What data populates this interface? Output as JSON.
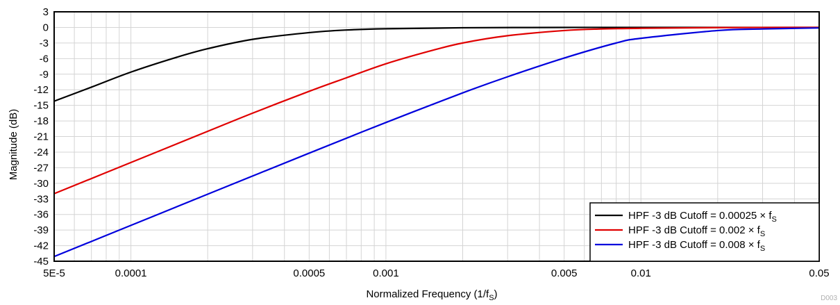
{
  "chart_data": {
    "type": "line",
    "title": "",
    "xlabel": "Normalized Frequency (1/f",
    "xlabel_sub": "S",
    "xlabel_suffix": ")",
    "ylabel": "Magnitude (dB)",
    "x_scale": "log",
    "xlim": [
      5e-05,
      0.05
    ],
    "ylim": [
      -45,
      3
    ],
    "x_ticks": [
      {
        "value": 5e-05,
        "label": "5E-5"
      },
      {
        "value": 0.0001,
        "label": "0.0001"
      },
      {
        "value": 0.0005,
        "label": "0.0005"
      },
      {
        "value": 0.001,
        "label": "0.001"
      },
      {
        "value": 0.005,
        "label": "0.005"
      },
      {
        "value": 0.01,
        "label": "0.01"
      },
      {
        "value": 0.05,
        "label": "0.05"
      }
    ],
    "y_ticks": [
      3,
      0,
      -3,
      -6,
      -9,
      -12,
      -15,
      -18,
      -21,
      -24,
      -27,
      -30,
      -33,
      -36,
      -39,
      -42,
      -45
    ],
    "grid": true,
    "legend_position": "bottom-right",
    "watermark": "D003",
    "series": [
      {
        "name": "HPF -3 dB Cutoff = 0.00025 × f",
        "name_sub": "S",
        "color": "#000000",
        "x": [
          5e-05,
          7e-05,
          0.0001,
          0.00015,
          0.0002,
          0.0003,
          0.0005,
          0.0007,
          0.001,
          0.002,
          0.005,
          0.01,
          0.05
        ],
        "y": [
          -14.2,
          -11.5,
          -8.6,
          -5.8,
          -4.1,
          -2.3,
          -1.0,
          -0.5,
          -0.26,
          -0.07,
          -0.01,
          0.0,
          0.0
        ]
      },
      {
        "name": "HPF -3 dB Cutoff = 0.002 × f",
        "name_sub": "S",
        "color": "#e00000",
        "x": [
          5e-05,
          0.0001,
          0.0002,
          0.0003,
          0.0005,
          0.0007,
          0.001,
          0.0015,
          0.002,
          0.003,
          0.005,
          0.007,
          0.01,
          0.02,
          0.05
        ],
        "y": [
          -32.0,
          -26.0,
          -20.0,
          -16.5,
          -12.3,
          -9.7,
          -7.0,
          -4.5,
          -3.0,
          -1.6,
          -0.6,
          -0.3,
          -0.17,
          -0.04,
          0.0
        ]
      },
      {
        "name": "HPF -3 dB Cutoff = 0.008 × f",
        "name_sub": "S",
        "color": "#0000dd",
        "x": [
          5e-05,
          0.0001,
          0.0002,
          0.0005,
          0.001,
          0.002,
          0.003,
          0.005,
          0.008,
          0.01,
          0.02,
          0.03,
          0.05
        ],
        "y": [
          -44.1,
          -38.1,
          -32.1,
          -24.2,
          -18.3,
          -12.6,
          -9.5,
          -5.9,
          -3.0,
          -2.1,
          -0.6,
          -0.3,
          -0.1
        ]
      }
    ]
  }
}
